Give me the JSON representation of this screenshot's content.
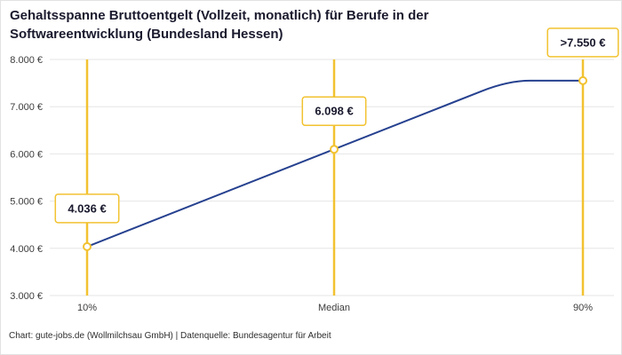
{
  "title": "Gehaltsspanne Bruttoentgelt (Vollzeit, monatlich) für Berufe in der\nSoftwareentwicklung (Bundesland Hessen)",
  "footer": "Chart: gute-jobs.de (Wollmilchsau GmbH) | Datenquelle: Bundesagentur für Arbeit",
  "colors": {
    "accent_yellow": "#F2C230",
    "line_blue": "#26418F",
    "grid": "#E6E6E6",
    "title_text": "#1A1A2E",
    "axis_text": "#3C3C3C"
  },
  "chart_data": {
    "type": "line",
    "title": "Gehaltsspanne Bruttoentgelt (Vollzeit, monatlich) für Berufe in der Softwareentwicklung (Bundesland Hessen)",
    "categories": [
      "10%",
      "Median",
      "90%"
    ],
    "values": [
      4036,
      6098,
      7550
    ],
    "value_labels": [
      "4.036 €",
      "6.098 €",
      ">7.550 €"
    ],
    "last_value_is_open_ended": true,
    "y_ticks": [
      3000,
      4000,
      5000,
      6000,
      7000,
      8000
    ],
    "y_tick_labels": [
      "3.000 €",
      "4.000 €",
      "5.000 €",
      "6.000 €",
      "7.000 €",
      "8.000 €"
    ],
    "ylim": [
      3000,
      8000
    ],
    "grid": "horizontal",
    "legend": "none",
    "xlabel": "",
    "ylabel": "",
    "source": "Bundesagentur für Arbeit"
  }
}
